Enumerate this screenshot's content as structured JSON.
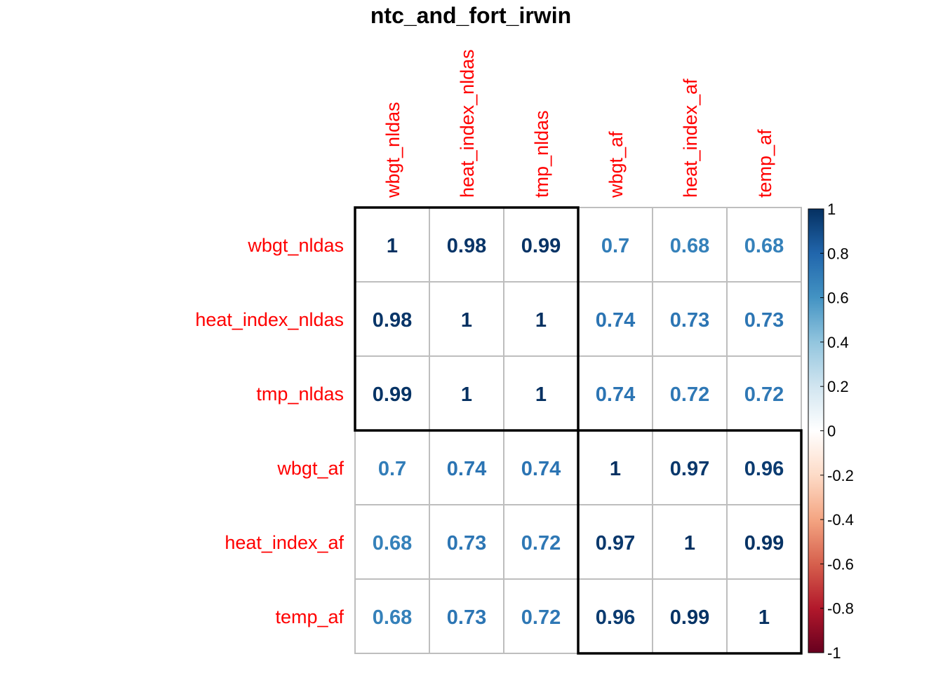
{
  "chart_data": {
    "type": "heatmap",
    "title": "ntc_and_fort_irwin",
    "rows": [
      "wbgt_nldas",
      "heat_index_nldas",
      "tmp_nldas",
      "wbgt_af",
      "heat_index_af",
      "temp_af"
    ],
    "columns": [
      "wbgt_nldas",
      "heat_index_nldas",
      "tmp_nldas",
      "wbgt_af",
      "heat_index_af",
      "temp_af"
    ],
    "values": [
      [
        1,
        0.98,
        0.99,
        0.7,
        0.68,
        0.68
      ],
      [
        0.98,
        1,
        1,
        0.74,
        0.73,
        0.73
      ],
      [
        0.99,
        1,
        1,
        0.74,
        0.72,
        0.72
      ],
      [
        0.7,
        0.74,
        0.74,
        1,
        0.97,
        0.96
      ],
      [
        0.68,
        0.73,
        0.72,
        0.97,
        1,
        0.99
      ],
      [
        0.68,
        0.73,
        0.72,
        0.96,
        0.99,
        1
      ]
    ],
    "value_labels": [
      [
        "1",
        "0.98",
        "0.99",
        "0.7",
        "0.68",
        "0.68"
      ],
      [
        "0.98",
        "1",
        "1",
        "0.74",
        "0.73",
        "0.73"
      ],
      [
        "0.99",
        "1",
        "1",
        "0.74",
        "0.72",
        "0.72"
      ],
      [
        "0.7",
        "0.74",
        "0.74",
        "1",
        "0.97",
        "0.96"
      ],
      [
        "0.68",
        "0.73",
        "0.72",
        "0.97",
        "1",
        "0.99"
      ],
      [
        "0.68",
        "0.73",
        "0.72",
        "0.96",
        "0.99",
        "1"
      ]
    ],
    "clusters": [
      {
        "rows": [
          0,
          2
        ],
        "cols": [
          0,
          2
        ]
      },
      {
        "rows": [
          3,
          5
        ],
        "cols": [
          3,
          5
        ]
      }
    ],
    "colorbar": {
      "range": [
        -1,
        1
      ],
      "tick_labels": [
        "1",
        "0.8",
        "0.6",
        "0.4",
        "0.2",
        "0",
        "-0.2",
        "-0.4",
        "-0.6",
        "-0.8",
        "-1"
      ],
      "tick_values": [
        1,
        0.8,
        0.6,
        0.4,
        0.2,
        0,
        -0.2,
        -0.4,
        -0.6,
        -0.8,
        -1
      ],
      "colors": [
        "#67001F",
        "#B2182B",
        "#D6604D",
        "#F4A582",
        "#FDDBC7",
        "#FFFFFF",
        "#D1E5F0",
        "#92C5DE",
        "#4393C3",
        "#2166AC",
        "#053061"
      ]
    },
    "label_color": "#FF0000",
    "grid_color": "#BEBEBE"
  }
}
